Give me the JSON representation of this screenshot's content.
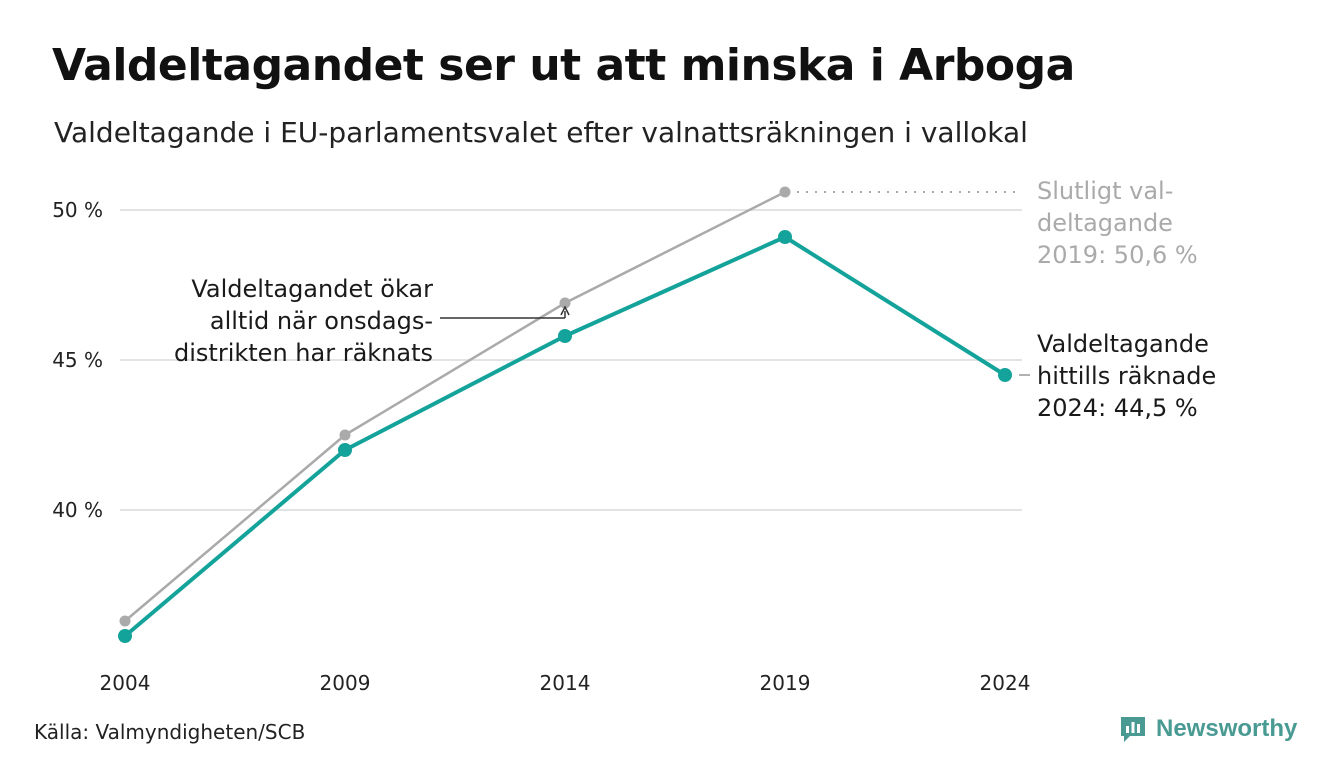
{
  "title": "Valdeltagandet ser ut att minska i Arboga",
  "subtitle": "Valdeltagande i EU-parlamentsvalet efter valnattsräkningen i vallokal",
  "source": "Källa: Valmyndigheten/SCB",
  "brand": "Newsworthy",
  "colors": {
    "current": "#14a39a",
    "final": "#aaaaaa",
    "grid": "#e3e3e3",
    "text": "#1a1a1a",
    "brand": "#4a9a94"
  },
  "chart_data": {
    "type": "line",
    "categories": [
      "2004",
      "2009",
      "2014",
      "2019",
      "2024"
    ],
    "series": [
      {
        "values": [
          36.3,
          42.5,
          46.9,
          50.6,
          null
        ]
      },
      {
        "values": [
          35.8,
          42.0,
          45.8,
          49.1,
          44.5
        ]
      }
    ],
    "ylim": [
      35.0,
      51.0
    ],
    "yticks": [
      40,
      45,
      50
    ],
    "ytick_labels": [
      "40 %",
      "45 %",
      "50 %"
    ],
    "grid": true,
    "annotations": {
      "onsdag": [
        "Valdeltagandet ökar",
        "alltid när onsdags-",
        "distrikten har räknats"
      ],
      "final2019": [
        "Slutligt val-",
        "deltagande",
        "2019: 50,6 %"
      ],
      "current2024": [
        "Valdeltagande",
        "hittills räknade",
        "2024: 44,5 %"
      ]
    }
  }
}
